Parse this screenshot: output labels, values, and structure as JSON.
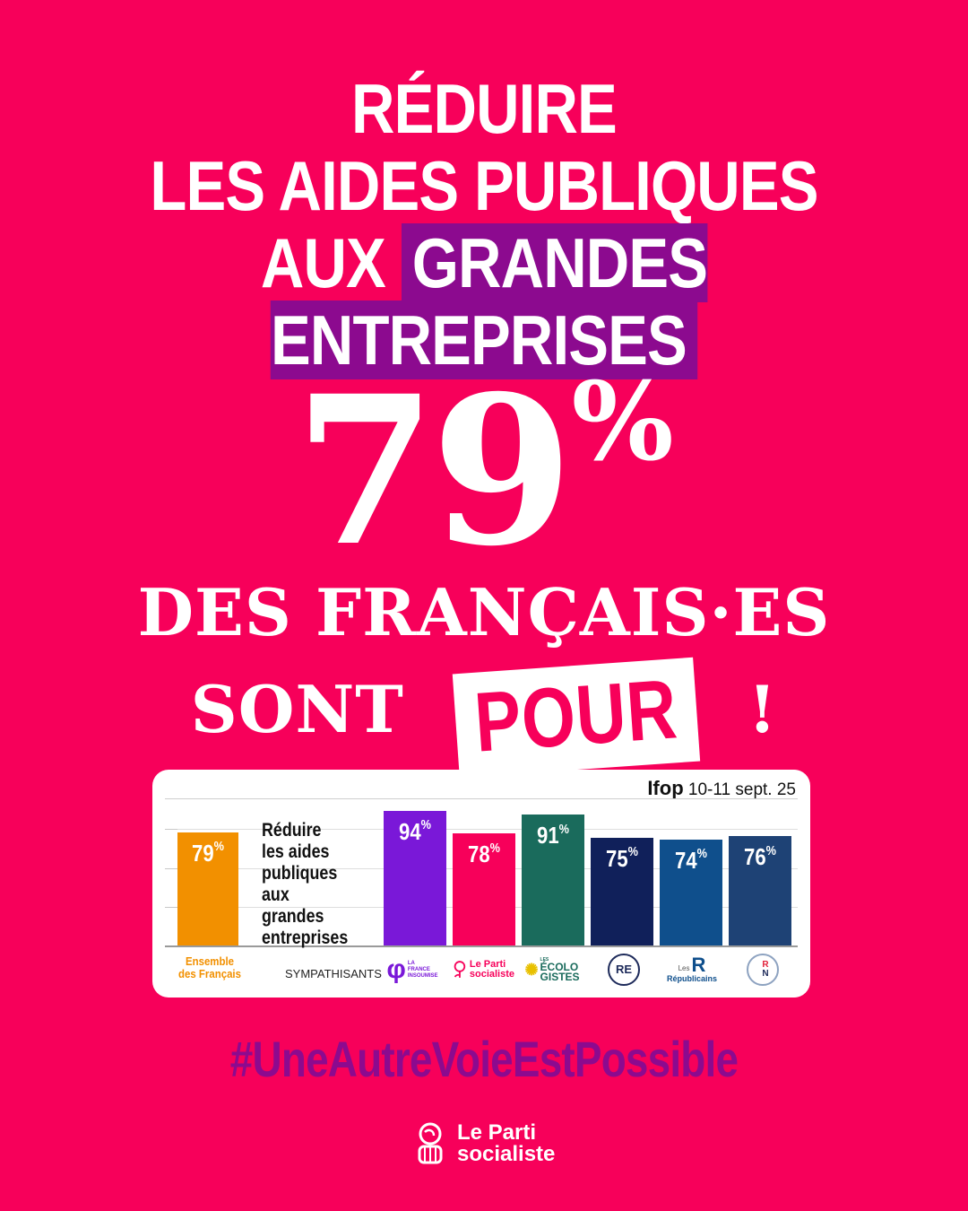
{
  "title": {
    "line1": "RÉDUIRE",
    "line2": "LES AIDES PUBLIQUES",
    "line3_prefix": "AUX",
    "line3_highlight": "GRANDES ENTREPRISES"
  },
  "headline": {
    "percent_value": "79",
    "percent_sign": "%",
    "line1": "DES FRANÇAIS·ES",
    "line2_prefix": "SONT",
    "line2_highlight": "POUR",
    "line2_suffix": "!"
  },
  "chart_data": {
    "type": "bar",
    "source_name": "Ifop",
    "source_date": "10-11 sept. 25",
    "question": [
      "Réduire",
      "les aides",
      "publiques",
      "aux grandes",
      "entreprises"
    ],
    "overall": {
      "label_line1": "Ensemble",
      "label_line2": "des Français",
      "value": 79,
      "color": "#f29000"
    },
    "group_label": "SYMPATHISANTS",
    "categories": [
      "La France Insoumise",
      "Le Parti socialiste",
      "Les Écologistes",
      "RE",
      "Les Républicains",
      "RN"
    ],
    "values": [
      94,
      78,
      91,
      75,
      74,
      76
    ],
    "colors": [
      "#7a18d8",
      "#f7005a",
      "#1a6b5c",
      "#10205a",
      "#0f4f8c",
      "#1e4275"
    ],
    "value_suffix": "%",
    "ylim": [
      0,
      100
    ]
  },
  "logos": {
    "lfi": [
      "LA",
      "FRANCE",
      "INSOUMISE"
    ],
    "ps": [
      "Le Parti",
      "socialiste"
    ],
    "eco": [
      "LES",
      "ÉCOLO",
      "GISTES"
    ],
    "re": "RE",
    "lr_big": "R",
    "lr_small": "Les",
    "lr_name": "Républicains",
    "rn": [
      "R",
      "N"
    ]
  },
  "hashtag": "#UneAutreVoieEstPossible",
  "brand": {
    "line1": "Le Parti",
    "line2": "socialiste"
  }
}
